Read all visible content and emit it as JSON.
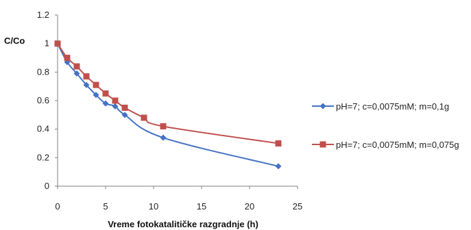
{
  "chart_data": {
    "type": "line",
    "ylabel": "C/Co",
    "xlabel": "Vreme  fotokatalitičke razgradnje (h)",
    "xlim": [
      0,
      25
    ],
    "ylim": [
      0,
      1.2
    ],
    "xticks": [
      "0",
      "5",
      "10",
      "15",
      "20",
      "25"
    ],
    "yticks": [
      "0",
      "0.2",
      "0.4",
      "0.6",
      "0.8",
      "1",
      "1.2"
    ],
    "grid": false,
    "legend_position": "right",
    "series": [
      {
        "name": "pH=7; c=0,0075mM; m=0,1g",
        "color": "#4472C4",
        "marker": "diamond",
        "points": [
          [
            0,
            1.0
          ],
          [
            1,
            0.87
          ],
          [
            2,
            0.79
          ],
          [
            3,
            0.71
          ],
          [
            4,
            0.64
          ],
          [
            5,
            0.58
          ],
          [
            6,
            0.56
          ],
          [
            7,
            0.5
          ],
          [
            11,
            0.34
          ],
          [
            23,
            0.14
          ]
        ]
      },
      {
        "name": "pH=7; c=0,0075mM; m=0,075g",
        "color": "#C0504D",
        "marker": "square",
        "points": [
          [
            0,
            1.0
          ],
          [
            1,
            0.9
          ],
          [
            2,
            0.84
          ],
          [
            3,
            0.77
          ],
          [
            4,
            0.71
          ],
          [
            5,
            0.65
          ],
          [
            6,
            0.6
          ],
          [
            7,
            0.55
          ],
          [
            9,
            0.48
          ],
          [
            11,
            0.42
          ],
          [
            23,
            0.3
          ]
        ]
      }
    ]
  }
}
